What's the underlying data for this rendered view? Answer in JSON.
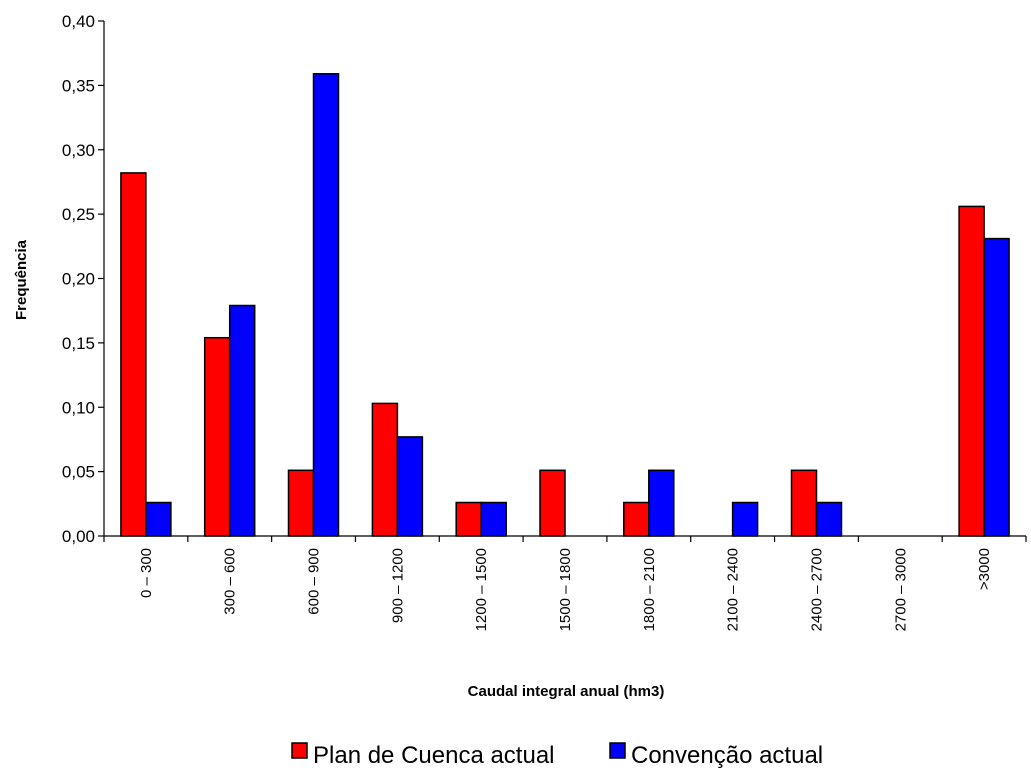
{
  "chart_data": {
    "type": "bar",
    "title": "",
    "xlabel": "Caudal integral anual (hm3)",
    "ylabel": "Frequência",
    "ylim": [
      0,
      0.4
    ],
    "yticks": [
      "0,00",
      "0,05",
      "0,10",
      "0,15",
      "0,20",
      "0,25",
      "0,30",
      "0,35",
      "0,40"
    ],
    "categories": [
      "0 – 300",
      "300 – 600",
      "600 – 900",
      "900 – 1200",
      "1200 – 1500",
      "1500 – 1800",
      "1800 – 2100",
      "2100 – 2400",
      "2400 – 2700",
      "2700 – 3000",
      ">3000"
    ],
    "series": [
      {
        "name": "Plan de Cuenca actual",
        "color": "#ff0000",
        "values": [
          0.282,
          0.154,
          0.051,
          0.103,
          0.026,
          0.051,
          0.026,
          0,
          0.051,
          0,
          0.256
        ]
      },
      {
        "name": "Convenção actual",
        "color": "#0000ff",
        "values": [
          0.026,
          0.179,
          0.359,
          0.077,
          0.026,
          0,
          0.051,
          0.026,
          0.026,
          0,
          0.231
        ]
      }
    ],
    "grid": false,
    "legend_position": "bottom"
  }
}
